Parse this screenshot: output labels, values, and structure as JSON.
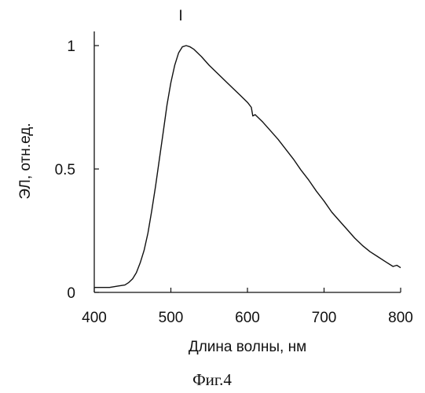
{
  "chart_data": {
    "type": "line",
    "title": "",
    "annotation": "I",
    "xlabel": "Длина волны, нм",
    "ylabel": "ЭЛ, отн.ед.",
    "xlim": [
      400,
      800
    ],
    "ylim": [
      0,
      1
    ],
    "xticks": [
      400,
      500,
      600,
      700,
      800
    ],
    "xtick_labels": [
      "400",
      "500",
      "600",
      "700",
      "800"
    ],
    "yticks": [
      0,
      0.5,
      1
    ],
    "ytick_labels": [
      "0",
      "0.5",
      "1"
    ],
    "grid": false,
    "series": [
      {
        "x": [
          400,
          410,
          420,
          430,
          440,
          445,
          450,
          455,
          460,
          465,
          470,
          475,
          480,
          485,
          490,
          495,
          500,
          505,
          510,
          515,
          520,
          525,
          530,
          535,
          540,
          550,
          560,
          570,
          580,
          590,
          600,
          605,
          607,
          610,
          620,
          630,
          640,
          650,
          660,
          670,
          680,
          690,
          700,
          710,
          720,
          730,
          740,
          750,
          760,
          770,
          780,
          790,
          795,
          800
        ],
        "y": [
          0.02,
          0.02,
          0.02,
          0.025,
          0.03,
          0.04,
          0.055,
          0.08,
          0.12,
          0.17,
          0.24,
          0.33,
          0.43,
          0.54,
          0.65,
          0.76,
          0.85,
          0.92,
          0.97,
          0.995,
          1.0,
          0.995,
          0.985,
          0.97,
          0.955,
          0.92,
          0.89,
          0.86,
          0.83,
          0.8,
          0.77,
          0.75,
          0.715,
          0.72,
          0.69,
          0.655,
          0.62,
          0.58,
          0.54,
          0.495,
          0.455,
          0.41,
          0.37,
          0.325,
          0.29,
          0.255,
          0.22,
          0.19,
          0.165,
          0.145,
          0.125,
          0.105,
          0.11,
          0.1
        ]
      }
    ]
  },
  "figure": {
    "caption": "Фиг.4"
  }
}
